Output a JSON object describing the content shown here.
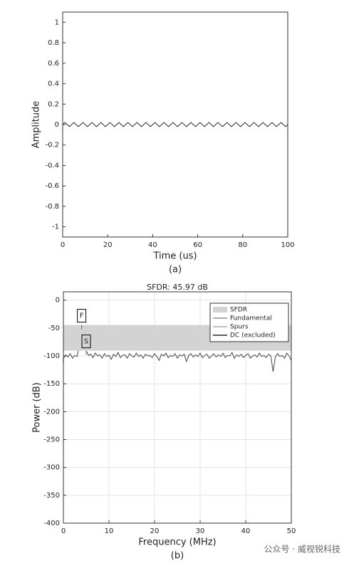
{
  "chart_data": [
    {
      "type": "line",
      "x_label": "Time (us)",
      "y_label": "Amplitude",
      "caption": "(a)",
      "xlim": [
        0,
        100
      ],
      "xticks": [
        0,
        20,
        40,
        60,
        80,
        100
      ],
      "ylim": [
        -1.1,
        1.1
      ],
      "yticks": [
        -1,
        -0.8,
        -0.6,
        -0.4,
        -0.2,
        0,
        0.2,
        0.4,
        0.6,
        0.8,
        1
      ],
      "grid": false,
      "series": [
        {
          "color": "#333333",
          "x": [
            0,
            1,
            2,
            3,
            4,
            5,
            6,
            7,
            8,
            9,
            10,
            11,
            12,
            13,
            14,
            15,
            16,
            17,
            18,
            19,
            20,
            21,
            22,
            23,
            24,
            25,
            26,
            27,
            28,
            29,
            30,
            31,
            32,
            33,
            34,
            35,
            36,
            37,
            38,
            39,
            40,
            41,
            42,
            43,
            44,
            45,
            46,
            47,
            48,
            49,
            50,
            51,
            52,
            53,
            54,
            55,
            56,
            57,
            58,
            59,
            60,
            61,
            62,
            63,
            64,
            65,
            66,
            67,
            68,
            69,
            70,
            71,
            72,
            73,
            74,
            75,
            76,
            77,
            78,
            79,
            80,
            81,
            82,
            83,
            84,
            85,
            86,
            87,
            88,
            89,
            90,
            91,
            92,
            93,
            94,
            95,
            96,
            97,
            98,
            99,
            100
          ],
          "values": [
            0,
            0.02,
            0,
            -0.02,
            0,
            0.02,
            0,
            -0.02,
            0,
            0.02,
            0,
            -0.02,
            0,
            0.02,
            0,
            -0.02,
            0,
            0.02,
            0,
            -0.02,
            0,
            0.02,
            0,
            -0.02,
            0,
            0.02,
            0,
            -0.02,
            0,
            0.02,
            0,
            -0.02,
            0,
            0.02,
            0,
            -0.02,
            0,
            0.02,
            0,
            -0.02,
            0,
            0.02,
            0,
            -0.02,
            0,
            0.02,
            0,
            -0.02,
            0,
            0.02,
            0,
            -0.02,
            0,
            0.02,
            0,
            -0.02,
            0,
            0.02,
            0,
            -0.02,
            0,
            0.02,
            0,
            -0.02,
            0,
            0.02,
            0,
            -0.02,
            0,
            0.02,
            0,
            -0.02,
            0,
            0.02,
            0,
            -0.02,
            0,
            0.02,
            0,
            -0.02,
            0,
            0.02,
            0,
            -0.02,
            0,
            0.02,
            0,
            -0.02,
            0,
            0.02,
            0,
            -0.02,
            0,
            0.02,
            0,
            -0.02,
            0,
            0.02,
            0,
            -0.02,
            0
          ]
        }
      ]
    },
    {
      "type": "line",
      "title": "SFDR:  45.97 dB",
      "x_label": "Frequency (MHz)",
      "y_label": "Power (dB)",
      "caption": "(b)",
      "xlim": [
        0,
        50
      ],
      "xticks": [
        0,
        10,
        20,
        30,
        40,
        50
      ],
      "ylim": [
        -400,
        15
      ],
      "yticks": [
        -400,
        -350,
        -300,
        -250,
        -200,
        -150,
        -100,
        -50,
        0
      ],
      "grid": true,
      "legend": "upper right",
      "series": [
        {
          "color": "#555555",
          "x": [
            0,
            0.5,
            1,
            1.5,
            2,
            2.5,
            3,
            3.5,
            4,
            4.5,
            5,
            5.5,
            6,
            6.5,
            7,
            7.5,
            8,
            8.5,
            9,
            9.5,
            10,
            10.5,
            11,
            11.5,
            12,
            12.5,
            13,
            13.5,
            14,
            14.5,
            15,
            15.5,
            16,
            16.5,
            17,
            17.5,
            18,
            18.5,
            19,
            19.5,
            20,
            20.5,
            21,
            21.5,
            22,
            22.5,
            23,
            23.5,
            24,
            24.5,
            25,
            25.5,
            26,
            26.5,
            27,
            27.5,
            28,
            28.5,
            29,
            29.5,
            30,
            30.5,
            31,
            31.5,
            32,
            32.5,
            33,
            33.5,
            34,
            34.5,
            35,
            35.5,
            36,
            36.5,
            37,
            37.5,
            38,
            38.5,
            39,
            39.5,
            40,
            40.5,
            41,
            41.5,
            42,
            42.5,
            43,
            43.5,
            44,
            44.5,
            45,
            45.5,
            46,
            46.5,
            47,
            47.5,
            48,
            48.5,
            49,
            49.5,
            50
          ],
          "values": [
            -105,
            -98,
            -102,
            -96,
            -104,
            -99,
            -101,
            -80,
            -44.5,
            -82,
            -90.5,
            -99,
            -97,
            -103,
            -95,
            -100,
            -98,
            -104,
            -96,
            -101,
            -99,
            -106,
            -97,
            -101,
            -94,
            -103,
            -99,
            -98,
            -104,
            -96,
            -100,
            -102,
            -95,
            -101,
            -98,
            -104,
            -97,
            -100,
            -99,
            -103,
            -96,
            -101,
            -108,
            -97,
            -100,
            -95,
            -103,
            -99,
            -101,
            -96,
            -104,
            -98,
            -100,
            -97,
            -110,
            -99,
            -96,
            -102,
            -98,
            -101,
            -95,
            -103,
            -99,
            -97,
            -104,
            -100,
            -96,
            -102,
            -98,
            -101,
            -95,
            -103,
            -99,
            -100,
            -94,
            -104,
            -98,
            -101,
            -97,
            -103,
            -99,
            -96,
            -104,
            -100,
            -98,
            -102,
            -95,
            -101,
            -99,
            -103,
            -97,
            -100,
            -128,
            -102,
            -96,
            -101,
            -99,
            -104,
            -95,
            -100,
            -108
          ]
        },
        {
          "name": "SFDR",
          "style": "band",
          "color": "#d3d3d3",
          "values": [
            -90.5,
            -44.5
          ]
        },
        {
          "name": "Fundamental",
          "style": "stem",
          "color": "#777777",
          "x": [
            4
          ],
          "values": [
            -44.5
          ]
        },
        {
          "name": "Spurs",
          "style": "stem",
          "color": "#999999",
          "x": [
            5
          ],
          "values": [
            -90.5
          ]
        },
        {
          "name": "DC (excluded)",
          "style": "stem",
          "color": "#000000",
          "x": [
            0
          ],
          "values": [
            -105
          ]
        }
      ],
      "annotations": [
        {
          "text": "F",
          "x": 4,
          "y": -44.5
        },
        {
          "text": "S",
          "x": 5,
          "y": -90.5
        }
      ]
    }
  ],
  "watermark": "公众号 · 威视锐科技"
}
